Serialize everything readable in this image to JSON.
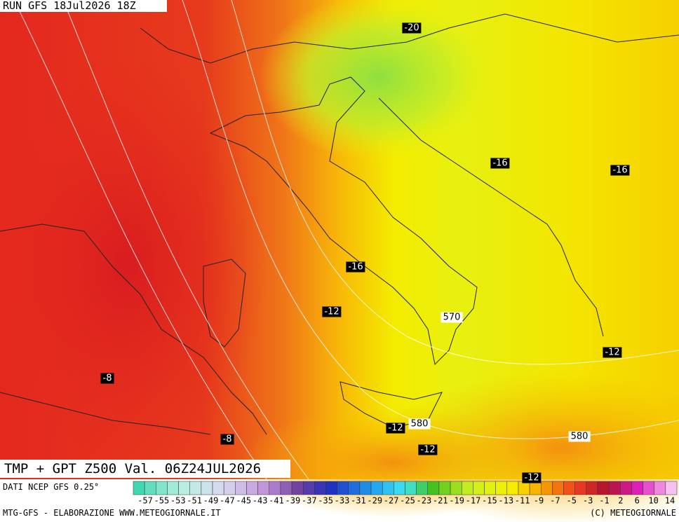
{
  "header": "RUN GFS 18Jul2026 18Z",
  "title": "TMP + GPT Z500 Val. 06Z24JUL2026",
  "source": "DATI NCEP GFS 0.25°",
  "footer_left": "MTG-GFS - ELABORAZIONE WWW.METEOGIORNALE.IT",
  "footer_right": "(C) METEOGIORNALE",
  "map_labels": [
    "-20",
    "-16",
    "-16",
    "-16",
    "-12",
    "570",
    "-12",
    "-8",
    "-12",
    "580",
    "-12",
    "-8",
    "580",
    "-12"
  ],
  "colorbar_labels": [
    -57,
    -55,
    -53,
    -51,
    -49,
    -47,
    -45,
    -43,
    -41,
    -39,
    -37,
    -35,
    -33,
    -31,
    -29,
    -27,
    -25,
    -23,
    -21,
    -19,
    -17,
    -15,
    -13,
    -11,
    -9,
    -7,
    -5,
    -3,
    -1,
    2,
    6,
    10,
    14
  ]
}
